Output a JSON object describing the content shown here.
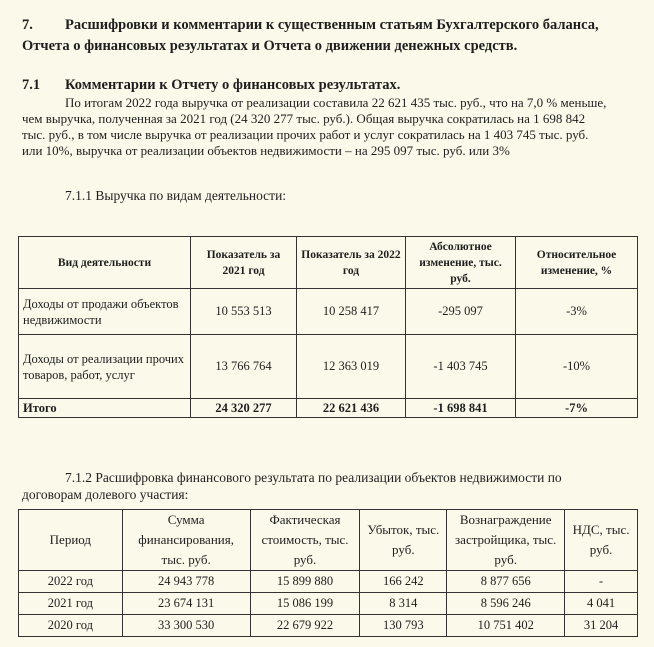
{
  "section7": {
    "number": "7.",
    "title_line1": "Расшифровки и комментарии к существенным статьям Бухгалтерского баланса,",
    "title_line2": "Отчета о финансовых результатах и Отчета о движении денежных средств."
  },
  "section71": {
    "number": "7.1",
    "title": "Комментарии к Отчету о финансовых результатах.",
    "paragraph_lines": [
      "По итогам 2022 года выручка от реализации составила 22 621 435 тыс. руб., что на 7,0 % меньше,",
      "чем выручка, полученная за 2021 год (24 320 277 тыс. руб.). Общая выручка сократилась на 1 698 842",
      "тыс. руб., в том числе выручка от реализации прочих работ и услуг сократилась на 1 403 745 тыс. руб.",
      "или 10%, выручка от реализации объектов недвижимости – на 295 097 тыс. руб. или 3%"
    ]
  },
  "table1": {
    "caption": "7.1.1 Выручка по видам деятельности:",
    "headers": [
      "Вид деятельности",
      "Показатель за 2021 год",
      "Показатель за 2022 год",
      "Абсолютное изменение, тыс. руб.",
      "Относительное изменение, %"
    ],
    "rows": [
      [
        "Доходы от продажи объектов недвижимости",
        "10 553 513",
        "10 258 417",
        "-295 097",
        "-3%"
      ],
      [
        "Доходы от реализации прочих товаров, работ, услуг",
        "13 766 764",
        "12 363 019",
        "-1 403 745",
        "-10%"
      ]
    ],
    "total": [
      "Итого",
      "24 320 277",
      "22 621 436",
      "-1 698 841",
      "-7%"
    ]
  },
  "table2": {
    "caption_line1": "7.1.2  Расшифровка финансового результата по реализации объектов недвижимости по",
    "caption_line2": "договорам долевого участия:",
    "headers": [
      "Период",
      "Сумма финансирования, тыс. руб.",
      "Фактическая стоимость, тыс. руб.",
      "Убыток, тыс. руб.",
      "Вознаграждение застройщика, тыс. руб.",
      "НДС, тыс. руб."
    ],
    "rows": [
      [
        "2022 год",
        "24 943 778",
        "15 899 880",
        "166 242",
        "8 877 656",
        "-"
      ],
      [
        "2021 год",
        "23 674 131",
        "15 086 199",
        "8 314",
        "8 596 246",
        "4 041"
      ],
      [
        "2020 год",
        "33 300 530",
        "22 679 922",
        "130 793",
        "10 751 402",
        "31 204"
      ]
    ]
  }
}
